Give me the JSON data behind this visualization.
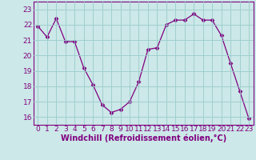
{
  "x": [
    0,
    1,
    2,
    3,
    4,
    5,
    6,
    7,
    8,
    9,
    10,
    11,
    12,
    13,
    14,
    15,
    16,
    17,
    18,
    19,
    20,
    21,
    22,
    23
  ],
  "y": [
    21.9,
    21.2,
    22.4,
    20.9,
    20.9,
    19.2,
    18.1,
    16.8,
    16.3,
    16.5,
    17.0,
    18.3,
    20.4,
    20.5,
    22.0,
    22.3,
    22.3,
    22.7,
    22.3,
    22.3,
    21.3,
    19.5,
    17.7,
    15.9
  ],
  "line_color": "#800080",
  "marker": "D",
  "marker_size": 2.5,
  "bg_color": "#cce8e8",
  "grid_color": "#99cccc",
  "xlabel": "Windchill (Refroidissement éolien,°C)",
  "ylim": [
    15.5,
    23.5
  ],
  "yticks": [
    16,
    17,
    18,
    19,
    20,
    21,
    22,
    23
  ],
  "xticks": [
    0,
    1,
    2,
    3,
    4,
    5,
    6,
    7,
    8,
    9,
    10,
    11,
    12,
    13,
    14,
    15,
    16,
    17,
    18,
    19,
    20,
    21,
    22,
    23
  ],
  "xlabel_fontsize": 7,
  "tick_fontsize": 6.5,
  "figwidth": 3.2,
  "figheight": 2.0,
  "dpi": 100
}
